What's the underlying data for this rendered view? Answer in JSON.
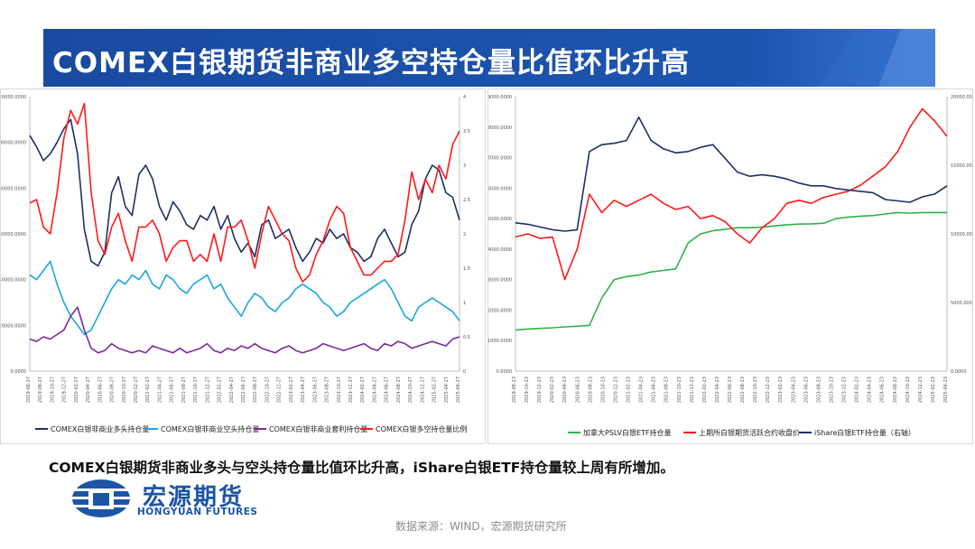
{
  "title": "COMEX白银期货非商业多空持仓量比值环比升高",
  "summary": "COMEX白银期货非商业多头与空头持仓量比值环比升高，iShare白银ETF持仓量较上周有所增加。",
  "source": "数据来源：WIND，宏源期货研究所",
  "logo": {
    "name_cn": "宏源期货",
    "name_en": "HONGYUAN FUTURES"
  },
  "colors": {
    "title_band": "#1c4fa3",
    "navy": "#1f2f66",
    "red": "#ff1a1a",
    "cyan": "#1aa7e0",
    "purple": "#7a2a9a",
    "green": "#2fb34a"
  },
  "chart_data": [
    {
      "type": "line",
      "y_left": {
        "ticks": [
          "0.0000",
          "20000.0000",
          "40000.0000",
          "60000.0000",
          "80000.0000",
          "100000.0000",
          "120000.0000"
        ],
        "range": [
          0,
          120000
        ]
      },
      "y_right": {
        "ticks": [
          "0",
          "0.5",
          "1",
          "1.5",
          "2",
          "2.5",
          "3",
          "3.5",
          "4"
        ],
        "range": [
          0,
          4
        ]
      },
      "x_labels": [
        "2019-06-27",
        "2019-08-27",
        "2019-10-27",
        "2019-12-27",
        "2020-02-27",
        "2020-04-27",
        "2020-06-27",
        "2020-08-27",
        "2020-10-27",
        "2020-12-27",
        "2021-02-27",
        "2021-04-27",
        "2021-06-27",
        "2021-08-27",
        "2021-10-27",
        "2021-12-27",
        "2022-02-27",
        "2022-04-27",
        "2022-06-27",
        "2022-08-27",
        "2022-10-27",
        "2022-12-27",
        "2023-02-27",
        "2023-04-27",
        "2023-06-27",
        "2023-08-27",
        "2023-10-27",
        "2023-12-27",
        "2024-02-27",
        "2024-04-27",
        "2024-06-27",
        "2024-08-27",
        "2024-10-27",
        "2024-12-27",
        "2025-02-27",
        "2025-04-27",
        "2025-06-27"
      ],
      "legend": [
        "COMEX白银非商业多头持仓量",
        "COMEX白银非商业空头持仓量",
        "COMEX白银非商业套利持仓量",
        "COMEX白银多空持仓量比例"
      ],
      "series": [
        {
          "name": "COMEX白银非商业多头持仓量",
          "axis": "left",
          "color": "#1f2f66",
          "values": [
            103000,
            98000,
            92000,
            95000,
            100000,
            106000,
            110000,
            95000,
            62000,
            48000,
            46000,
            52000,
            78000,
            85000,
            72000,
            68000,
            86000,
            90000,
            84000,
            72000,
            66000,
            74000,
            70000,
            64000,
            62000,
            68000,
            66000,
            72000,
            62000,
            68000,
            58000,
            52000,
            56000,
            50000,
            64000,
            66000,
            58000,
            60000,
            62000,
            54000,
            48000,
            52000,
            58000,
            56000,
            62000,
            58000,
            60000,
            54000,
            52000,
            48000,
            50000,
            58000,
            62000,
            56000,
            50000,
            52000,
            64000,
            70000,
            84000,
            90000,
            88000,
            78000,
            76000,
            66000
          ]
        },
        {
          "name": "COMEX白银非商业空头持仓量",
          "axis": "left",
          "color": "#1aa7e0",
          "values": [
            42000,
            40000,
            44000,
            48000,
            38000,
            30000,
            24000,
            20000,
            16000,
            18000,
            24000,
            30000,
            36000,
            40000,
            38000,
            42000,
            40000,
            44000,
            38000,
            36000,
            42000,
            40000,
            36000,
            34000,
            38000,
            40000,
            42000,
            36000,
            38000,
            32000,
            28000,
            24000,
            30000,
            34000,
            32000,
            28000,
            26000,
            30000,
            32000,
            36000,
            38000,
            36000,
            34000,
            30000,
            28000,
            24000,
            26000,
            30000,
            32000,
            34000,
            36000,
            38000,
            40000,
            36000,
            30000,
            24000,
            22000,
            28000,
            30000,
            32000,
            30000,
            28000,
            26000,
            22000
          ]
        },
        {
          "name": "COMEX白银非商业套利持仓量",
          "axis": "left",
          "color": "#7a2a9a",
          "values": [
            14000,
            13000,
            15000,
            14000,
            16000,
            18000,
            24000,
            28000,
            18000,
            10000,
            8000,
            9000,
            12000,
            10000,
            9000,
            8000,
            9000,
            8000,
            11000,
            10000,
            9000,
            8000,
            10000,
            8000,
            9000,
            10000,
            12000,
            9000,
            8000,
            10000,
            9000,
            11000,
            10000,
            12000,
            10000,
            9000,
            8000,
            10000,
            11000,
            9000,
            8000,
            9000,
            10000,
            12000,
            11000,
            10000,
            9000,
            10000,
            11000,
            12000,
            10000,
            9000,
            12000,
            11000,
            13000,
            12000,
            10000,
            11000,
            12000,
            13000,
            12000,
            11000,
            14000,
            15000
          ]
        },
        {
          "name": "COMEX白银多空持仓量比例",
          "axis": "right",
          "color": "#ff1a1a",
          "values": [
            2.45,
            2.5,
            2.1,
            2.0,
            2.6,
            3.4,
            3.8,
            3.6,
            3.9,
            2.6,
            1.9,
            1.7,
            2.1,
            2.3,
            1.9,
            1.6,
            2.1,
            2.1,
            2.2,
            2.0,
            1.6,
            1.8,
            1.9,
            1.9,
            1.6,
            1.7,
            1.6,
            2.0,
            1.6,
            2.1,
            2.1,
            2.2,
            1.9,
            1.5,
            2.0,
            2.4,
            2.2,
            2.0,
            1.9,
            1.5,
            1.3,
            1.4,
            1.7,
            1.9,
            2.2,
            2.4,
            2.3,
            1.8,
            1.6,
            1.4,
            1.4,
            1.5,
            1.6,
            1.6,
            1.7,
            2.2,
            2.9,
            2.5,
            2.8,
            2.6,
            3.0,
            2.8,
            3.3,
            3.5
          ]
        }
      ]
    },
    {
      "type": "line",
      "y_left": {
        "ticks": [
          "0.0000",
          "1000.0000",
          "2000.0000",
          "3000.0000",
          "4000.0000",
          "5000.0000",
          "6000.0000",
          "7000.0000",
          "8000.0000",
          "9000.0000"
        ],
        "range": [
          0,
          9000
        ]
      },
      "y_right": {
        "ticks": [
          "0.0000",
          "5000.0000",
          "10000.0000",
          "15000.0000",
          "20000.0000"
        ],
        "range": [
          0,
          20000
        ]
      },
      "x_labels": [
        "2019-08-23",
        "2019-10-23",
        "2019-12-23",
        "2020-02-23",
        "2020-04-23",
        "2020-06-23",
        "2020-08-23",
        "2020-10-23",
        "2020-12-23",
        "2021-02-23",
        "2021-04-23",
        "2021-06-23",
        "2021-08-23",
        "2021-10-23",
        "2021-12-23",
        "2022-02-23",
        "2022-04-23",
        "2022-06-23",
        "2022-08-23",
        "2022-10-23",
        "2022-12-23",
        "2023-02-23",
        "2023-04-23",
        "2023-06-23",
        "2023-08-23",
        "2023-10-23",
        "2023-12-23",
        "2024-02-23",
        "2024-04-23",
        "2024-06-23",
        "2024-08-23",
        "2024-10-23",
        "2024-12-23",
        "2025-02-23",
        "2025-04-23"
      ],
      "legend": [
        "加拿大PSLV白银ETF持仓量",
        "上期所白银期货活跃合约收盘价",
        "iShare白银ETF持仓量（右轴）"
      ],
      "series": [
        {
          "name": "加拿大PSLV白银ETF持仓量",
          "axis": "left",
          "color": "#2fb34a",
          "values": [
            1350,
            1380,
            1400,
            1420,
            1450,
            1470,
            1500,
            2400,
            3000,
            3100,
            3150,
            3250,
            3300,
            3350,
            4200,
            4500,
            4600,
            4650,
            4700,
            4700,
            4720,
            4760,
            4800,
            4820,
            4830,
            4850,
            5000,
            5050,
            5080,
            5100,
            5150,
            5200,
            5180,
            5200,
            5200,
            5200
          ]
        },
        {
          "name": "上期所白银期货活跃合约收盘价",
          "axis": "left",
          "color": "#ff1a1a",
          "values": [
            4400,
            4500,
            4350,
            4400,
            3000,
            4000,
            5800,
            5200,
            5600,
            5400,
            5600,
            5800,
            5500,
            5300,
            5400,
            5000,
            5100,
            4900,
            4500,
            4200,
            4700,
            5000,
            5500,
            5600,
            5500,
            5700,
            5800,
            5900,
            6100,
            6400,
            6700,
            7200,
            8000,
            8600,
            8200,
            7700
          ]
        },
        {
          "name": "iShare白银ETF持仓量（右轴）",
          "axis": "right",
          "color": "#1f2f66",
          "values": [
            10800,
            10700,
            10500,
            10300,
            10200,
            10300,
            16000,
            16500,
            16600,
            16800,
            18500,
            16800,
            16200,
            15900,
            16000,
            16300,
            16500,
            15500,
            14500,
            14200,
            14300,
            14200,
            14000,
            13700,
            13500,
            13500,
            13300,
            13200,
            13100,
            13000,
            12500,
            12400,
            12300,
            12700,
            12900,
            13500
          ]
        }
      ]
    }
  ]
}
